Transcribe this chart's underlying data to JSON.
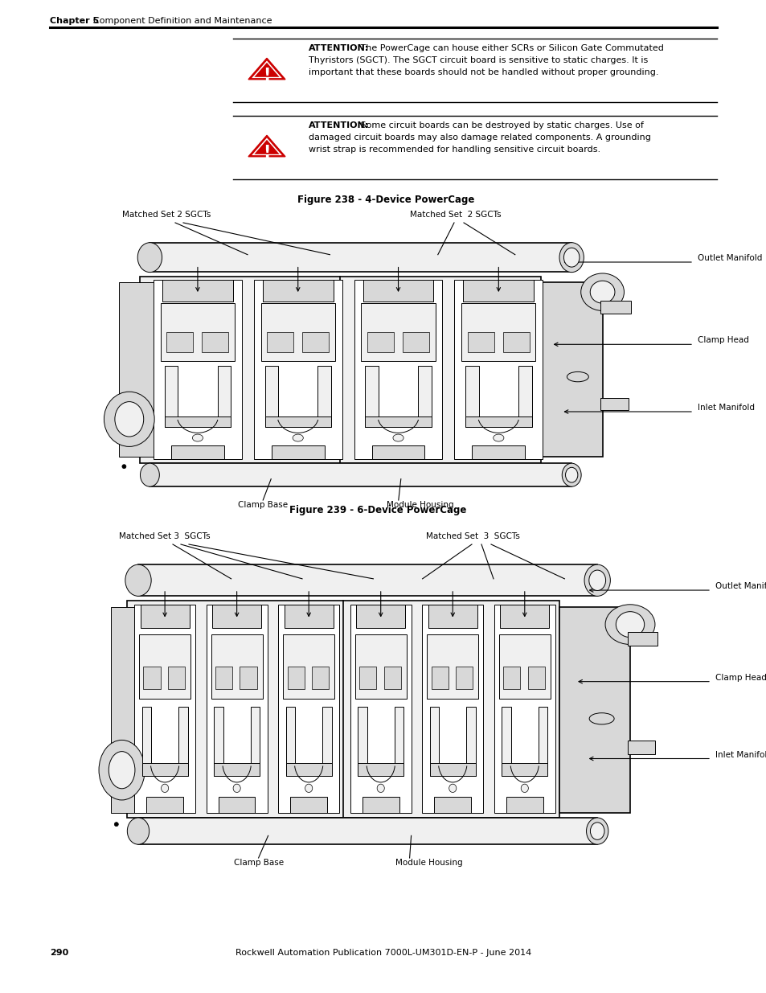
{
  "page_background": "#ffffff",
  "header_bold": "Chapter 5",
  "header_normal": "Component Definition and Maintenance",
  "footer_page_num": "290",
  "footer_center": "Rockwell Automation Publication 7000L-UM301D-EN-P - June 2014",
  "attn1_bold": "ATTENTION:",
  "attn1_text1": " The PowerCage can house either SCRs or Silicon Gate Commutated",
  "attn1_text2": "Thyristors (SGCT). The SGCT circuit board is sensitive to static charges. It is",
  "attn1_text3": "important that these boards should not be handled without proper grounding.",
  "attn2_bold": "ATTENTION:",
  "attn2_text1": " Some circuit boards can be destroyed by static charges. Use of",
  "attn2_text2": "damaged circuit boards may also damage related components. A grounding",
  "attn2_text3": "wrist strap is recommended for handling sensitive circuit boards.",
  "fig1_caption": "Figure 238 - 4-Device PowerCage",
  "fig2_caption": "Figure 239 - 6-Device PowerCage",
  "fig1_lbl_lt": "Matched Set 2 SGCTs",
  "fig1_lbl_rt": "Matched Set  2 SGCTs",
  "fig1_lbl_outlet": "Outlet Manifold",
  "fig1_lbl_clamp": "Clamp Head",
  "fig1_lbl_inlet": "Inlet Manifold",
  "fig1_lbl_base": "Clamp Base",
  "fig1_lbl_housing": "Module Housing",
  "fig2_lbl_lt": "Matched Set 3  SGCTs",
  "fig2_lbl_rt": "Matched Set  3  SGCTs",
  "fig2_lbl_outlet": "Outlet Manifold",
  "fig2_lbl_clamp": "Clamp Head",
  "fig2_lbl_inlet": "Inlet Manifold",
  "fig2_lbl_base": "Clamp Base",
  "fig2_lbl_housing": "Module Housing",
  "line_color": "#000000",
  "fill_light": "#f0f0f0",
  "fill_mid": "#d8d8d8",
  "fill_dark": "#b0b0b0",
  "fill_white": "#ffffff"
}
